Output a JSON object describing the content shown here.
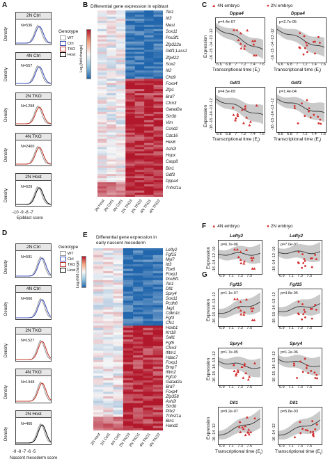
{
  "panels": {
    "A": "A",
    "B": "B",
    "C": "C",
    "D": "D",
    "E": "E",
    "F": "F",
    "G": "G"
  },
  "density_A": {
    "ylabel": "Density",
    "xlabel": "Epiblast score",
    "xticks": [
      "-10",
      "-9",
      "-8",
      "-7"
    ],
    "legend_title": "Genotype",
    "legend": [
      "WT",
      "Ctrl",
      "TKO",
      "Host"
    ],
    "plots": [
      {
        "title": "2N Ctrl",
        "n": "N=536"
      },
      {
        "title": "4N Ctrl",
        "n": "N=557"
      },
      {
        "title": "2N TKO",
        "n": "N=1298"
      },
      {
        "title": "4N TKO",
        "n": "N=2400"
      },
      {
        "title": "2N Host",
        "n": "N=629"
      }
    ]
  },
  "density_D": {
    "ylabel": "Density",
    "xlabel": "Nascent mesoderm score",
    "xticks": [
      "-9",
      "-8",
      "-7",
      "-6",
      "-5"
    ],
    "legend_title": "Genotype",
    "legend": [
      "WT",
      "Ctrl",
      "TKO",
      "Host"
    ],
    "plots": [
      {
        "title": "2N Ctrl",
        "n": "N=591"
      },
      {
        "title": "4N Ctrl",
        "n": "N=666"
      },
      {
        "title": "2N TKO",
        "n": "N=1527"
      },
      {
        "title": "4N TKO",
        "n": "N=1948"
      },
      {
        "title": "2N Host",
        "n": "N=460"
      }
    ]
  },
  "heat_B": {
    "title": "Differential gene expression in epiblast",
    "scale_label": "Log₂(fold change)",
    "scale_ticks": [
      "2",
      "1",
      "0",
      "-1",
      "-2"
    ],
    "columns": [
      "2N Host",
      "2N Ctrl1",
      "4N Ctrl1",
      "2N TKO3",
      "2N TKO2",
      "4N TKO1",
      "4N TKO2"
    ],
    "genes": [
      "Tet1",
      "Id3",
      "Mest",
      "Sox11",
      "Pou3f1",
      "Zfp322a",
      "Gdf1;Lass1",
      "Zfp422",
      "Sox2",
      "Id2",
      "Chd9",
      "Foxo4",
      "Zfp1",
      "Brd7",
      "Clcn3",
      "Gatad2a",
      "Sin3b",
      "Vim",
      "Ccnd2",
      "Cdc16",
      "Hes6",
      "Ash2l",
      "Hopx",
      "Casp8",
      "Bin1",
      "Gdf3",
      "Dppa4",
      "Tnfrsf1a"
    ]
  },
  "heat_E": {
    "title_line1": "Differential gene expression in",
    "title_line2": "early nascent mesoderm",
    "scale_label": "Log₂(fold change)",
    "scale_ticks": [
      "1.5",
      "1",
      "0.5",
      "0",
      "-0.5",
      "-1",
      "-1.5"
    ],
    "columns": [
      "2N Host",
      "2N Ctrl1",
      "4N Ctrl1",
      "2N TKO3",
      "2N TKO1",
      "4N TKO1",
      "4N TKO2"
    ],
    "genes": [
      "Lefty2",
      "Fgf15",
      "Myl7",
      "Id3",
      "Tbx6",
      "Foxp1",
      "Pou5f1",
      "Tet1",
      "Dll1",
      "Spry4",
      "Sox11",
      "Pcdh8",
      "Jag1",
      "Cdkn1c",
      "Fgf3",
      "Cfc1",
      "Hoxb1",
      "Krt18",
      "Sall1",
      "Fgf5",
      "Clcn3",
      "Ifitm1",
      "Hdac7",
      "Foxp1",
      "Bmp7",
      "Ifitm2",
      "Fgf10",
      "Gatad2a",
      "Brd7",
      "Foxp4",
      "Zfp358",
      "Ash2l",
      "Sin3b",
      "Pitx2",
      "Tnfrsf1a",
      "Bin1",
      "Hand2"
    ]
  },
  "legend_CF": {
    "a": "4N embryo",
    "b": "2N embryo",
    "color": "#d32f2f"
  },
  "scatter_C": {
    "ylabel": "Expression",
    "xlabel": "Transcriptional time (E",
    "xlabel_sub": "t",
    "xticks": [
      "6.6",
      "6.8",
      "7",
      "7.2",
      "7.4",
      "7.6"
    ],
    "yticks": [
      "-16",
      "-15",
      "-14",
      "-13",
      "-12"
    ],
    "plots": [
      {
        "gene": "Dppa4",
        "p": "p=4.4e-07"
      },
      {
        "gene": "Dppa4",
        "p": "p=2.7e-05"
      },
      {
        "gene": "Gdf3",
        "p": "p=4.5e-09"
      },
      {
        "gene": "Gdf3",
        "p": "p=1.4e-04"
      }
    ]
  },
  "scatter_F": {
    "ylabel": "Expression",
    "xticks": [
      "6.9",
      "7.1",
      "7.3",
      "7.5"
    ],
    "yticks": [
      "-16",
      "-14",
      "-12",
      "-10"
    ],
    "plots": [
      {
        "gene": "Lefty2",
        "p": "p=6.7e-06"
      },
      {
        "gene": "Lefty2",
        "p": "p=7.0e-07"
      }
    ]
  },
  "scatter_G": {
    "ylabel": "Expression",
    "xlabel": "Transcriptional time (E",
    "xlabel_sub": "t",
    "xticks": [
      "6.9",
      "7.1",
      "7.3",
      "7.5"
    ],
    "plots": [
      {
        "gene": "Fgf15",
        "p": "p=1.1e-07",
        "yticks": [
          "-16",
          "-15",
          "-14",
          "-13",
          "-12"
        ]
      },
      {
        "gene": "Fgf15",
        "p": "p=4.8e-05",
        "yticks": [
          "-16",
          "-15",
          "-14",
          "-13",
          "-12"
        ]
      },
      {
        "gene": "Spry4",
        "p": "p=1.7e-05",
        "yticks": [
          "-16",
          "-15",
          "-14",
          "-13",
          "-12"
        ]
      },
      {
        "gene": "Spry4",
        "p": "p=1.2e-06",
        "yticks": [
          "-16",
          "-15",
          "-14",
          "-13",
          "-12"
        ]
      },
      {
        "gene": "Dll1",
        "p": "p=9.2e-07",
        "yticks": [
          "-16",
          "-14",
          "-12"
        ]
      },
      {
        "gene": "Dll1",
        "p": "p=5.8e-03",
        "yticks": [
          "-16",
          "-14",
          "-12"
        ]
      }
    ]
  },
  "colors": {
    "wt": "#9e9e9e",
    "ctrl": "#3f51b5",
    "tko": "#c0392b",
    "host": "#111111",
    "red": "#b2182b",
    "blue": "#2166ac",
    "point": "#d32f2f"
  }
}
